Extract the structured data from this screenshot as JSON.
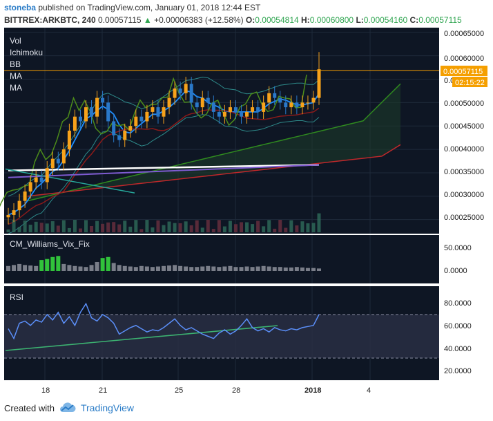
{
  "header": {
    "user": "stoneba",
    "published_text": "published on TradingView.com, January 01, 2018 12:44 EST",
    "symbol": "BITTREX:ARKBTC, 240",
    "last": "0.00057115",
    "change": "+0.00006383 (+12.58%)",
    "o_label": "O:",
    "o_value": "0.00054814",
    "h_label": "H:",
    "h_value": "0.00060800",
    "l_label": "L:",
    "l_value": "0.00054160",
    "c_label": "C:",
    "c_value": "0.00057115"
  },
  "legend": [
    "Vol",
    "Ichimoku",
    "BB",
    "MA",
    "MA"
  ],
  "price_axis": {
    "ticks": [
      "0.00065000",
      "0.00060000",
      "0.00055000",
      "0.00050000",
      "0.00045000",
      "0.00040000",
      "0.00035000",
      "0.00030000",
      "0.00025000"
    ],
    "last_price_label": "0.00057115",
    "countdown_label": "02:15:22"
  },
  "wvf_pane": {
    "title": "CM_Williams_Vix_Fix",
    "ticks": [
      "50.0000",
      "0.0000"
    ]
  },
  "rsi_pane": {
    "title": "RSI",
    "ticks": [
      "80.0000",
      "60.0000",
      "40.0000",
      "20.0000"
    ]
  },
  "time_axis": [
    "18",
    "21",
    "25",
    "28",
    "2018",
    "4"
  ],
  "footer": {
    "created_with": "Created with",
    "brand": "TradingView"
  },
  "colors": {
    "background": "#0e1624",
    "grid": "#1e2a3a",
    "candle_up": "#f7a21b",
    "candle_down": "#2a78c8",
    "bb": "#2e8b8b",
    "tenkan": "#1f8fff",
    "kijun": "#8b1a1a",
    "senkou_a": "#2f8a1f",
    "senkou_b": "#c0282b",
    "chikou": "#4c8c1a",
    "ma_white": "#ffffff",
    "ma_purple": "#7e5bd1",
    "rsi": "#5b8ff9",
    "rsi_trend": "#3cb371",
    "trendline": "#26a69a",
    "price_line": "#f59f00"
  },
  "chart_data": {
    "type": "candlestick",
    "symbol": "BITTREX:ARKBTC",
    "interval": "240",
    "x_ticks": [
      "18",
      "21",
      "25",
      "28",
      "2018",
      "4"
    ],
    "price_range": [
      0.00022,
      0.00066
    ],
    "close_path": [
      0.00026,
      0.00027,
      0.00029,
      0.00031,
      0.00033,
      0.00034,
      0.00033,
      0.00036,
      0.00038,
      0.00037,
      0.0004,
      0.00044,
      0.00047,
      0.00046,
      0.00049,
      0.00047,
      0.00051,
      0.0005,
      0.00046,
      0.00043,
      0.00042,
      0.00044,
      0.00045,
      0.00047,
      0.00046,
      0.00048,
      0.00049,
      0.00047,
      0.00049,
      0.00051,
      0.00053,
      0.00052,
      0.00054,
      0.0005,
      0.00049,
      0.00051,
      0.0005,
      0.00048,
      0.00047,
      0.00048,
      0.00049,
      0.00048,
      0.00047,
      0.00048,
      0.00049,
      0.00048,
      0.0005,
      0.00052,
      0.00051,
      0.0005,
      0.00049,
      0.0005,
      0.00049,
      0.0005,
      0.0005,
      0.00051,
      0.00057
    ],
    "last_close": 0.00057115,
    "ohlc_last": {
      "open": 0.00054814,
      "high": 0.000608,
      "low": 0.0005416,
      "close": 0.00057115
    },
    "ma_white": {
      "start": 0.000355,
      "end": 0.000367
    },
    "ma_purple": {
      "start": 0.00034,
      "end": 0.000367
    },
    "wvf": [
      10,
      12,
      14,
      12,
      11,
      10,
      22,
      24,
      28,
      30,
      14,
      12,
      10,
      9,
      8,
      12,
      18,
      26,
      28,
      16,
      12,
      10,
      9,
      8,
      10,
      9,
      8,
      9,
      10,
      11,
      12,
      10,
      9,
      8,
      8,
      9,
      10,
      9,
      8,
      9,
      10,
      8,
      8,
      9,
      8,
      9,
      10,
      9,
      8,
      8,
      7,
      7,
      8,
      7,
      6,
      6,
      5
    ],
    "wvf_ylim": [
      0,
      65
    ],
    "rsi": [
      57,
      48,
      62,
      64,
      60,
      65,
      63,
      70,
      65,
      72,
      62,
      68,
      60,
      72,
      80,
      67,
      64,
      70,
      67,
      62,
      52,
      55,
      58,
      60,
      57,
      54,
      56,
      55,
      58,
      62,
      66,
      60,
      56,
      58,
      55,
      52,
      50,
      48,
      53,
      56,
      52,
      55,
      60,
      66,
      58,
      55,
      57,
      54,
      58,
      56,
      55,
      57,
      56,
      58,
      59,
      60,
      70
    ],
    "rsi_ylim": [
      20,
      85
    ],
    "rsi_bands": [
      70,
      30
    ]
  }
}
